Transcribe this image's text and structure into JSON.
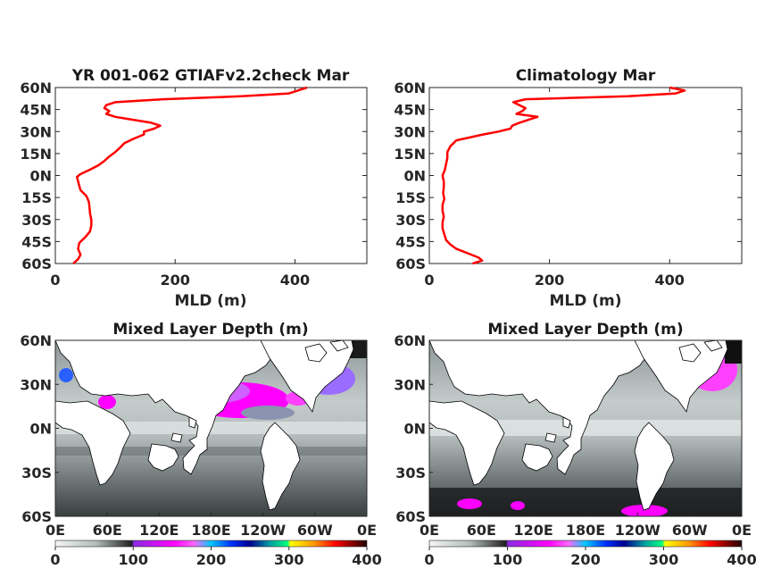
{
  "chart_data": [
    {
      "type": "line",
      "title": "YR 001-062 GTIAFv2.2check Mar",
      "xlabel": "MLD (m)",
      "ylabel": "",
      "xlim": [
        0,
        520
      ],
      "ylim": [
        -60,
        60
      ],
      "x_ticks": [
        "0",
        "200",
        "400"
      ],
      "y_ticks": [
        "60N",
        "45N",
        "30N",
        "15N",
        "0N",
        "15S",
        "30S",
        "45S",
        "60S"
      ],
      "line_color": "#ff0000",
      "series": [
        {
          "lat": [
            -60,
            -57,
            -54,
            -50,
            -46,
            -42,
            -38,
            -34,
            -30,
            -26,
            -22,
            -18,
            -14,
            -10,
            -7,
            -4,
            -1,
            1,
            4,
            7,
            10,
            13,
            16,
            19,
            22,
            25,
            28,
            30,
            32,
            34,
            36,
            38,
            40,
            42,
            44,
            46,
            48,
            50,
            52,
            54,
            56,
            58,
            60
          ],
          "mld": [
            30,
            38,
            42,
            38,
            40,
            50,
            58,
            60,
            60,
            58,
            57,
            56,
            52,
            42,
            40,
            38,
            36,
            42,
            58,
            72,
            82,
            90,
            100,
            108,
            115,
            130,
            148,
            148,
            165,
            175,
            160,
            130,
            100,
            85,
            90,
            82,
            85,
            100,
            180,
            310,
            390,
            405,
            420
          ]
        }
      ]
    },
    {
      "type": "line",
      "title": "Climatology Mar",
      "xlabel": "MLD (m)",
      "ylabel": "",
      "xlim": [
        0,
        520
      ],
      "ylim": [
        -60,
        60
      ],
      "x_ticks": [
        "0",
        "200",
        "400"
      ],
      "y_ticks": [
        "60N",
        "45N",
        "30N",
        "15N",
        "0N",
        "15S",
        "30S",
        "45S",
        "60S"
      ],
      "line_color": "#ff0000",
      "series": [
        {
          "lat": [
            -60,
            -58,
            -56,
            -54,
            -52,
            -50,
            -47,
            -44,
            -40,
            -36,
            -32,
            -28,
            -24,
            -20,
            -16,
            -12,
            -8,
            -4,
            0,
            4,
            8,
            12,
            16,
            20,
            24,
            28,
            30,
            32,
            34,
            36,
            38,
            40,
            42,
            44,
            46,
            48,
            50,
            52,
            54,
            56,
            58,
            60
          ],
          "mld": [
            72,
            88,
            82,
            70,
            58,
            45,
            35,
            28,
            25,
            22,
            22,
            24,
            22,
            22,
            25,
            23,
            24,
            24,
            22,
            26,
            28,
            30,
            30,
            35,
            45,
            90,
            115,
            135,
            138,
            150,
            165,
            180,
            145,
            155,
            160,
            150,
            140,
            160,
            330,
            410,
            425,
            400
          ]
        }
      ]
    },
    {
      "type": "heatmap",
      "title": "Mixed Layer Depth (m)",
      "x_ticks": [
        "0E",
        "60E",
        "120E",
        "180E",
        "120W",
        "60W",
        "0E"
      ],
      "y_ticks": [
        "60N",
        "30N",
        "0N",
        "30S",
        "60S"
      ],
      "colorbar": {
        "ticks": [
          "0",
          "100",
          "200",
          "300",
          "400"
        ],
        "range": [
          0,
          400
        ]
      }
    },
    {
      "type": "heatmap",
      "title": "Mixed Layer Depth (m)",
      "x_ticks": [
        "0E",
        "60E",
        "120E",
        "180E",
        "120W",
        "60W",
        "0E"
      ],
      "y_ticks": [
        "60N",
        "30N",
        "0N",
        "30S",
        "60S"
      ],
      "colorbar": {
        "ticks": [
          "0",
          "100",
          "200",
          "300",
          "400"
        ],
        "range": [
          0,
          400
        ]
      }
    }
  ]
}
